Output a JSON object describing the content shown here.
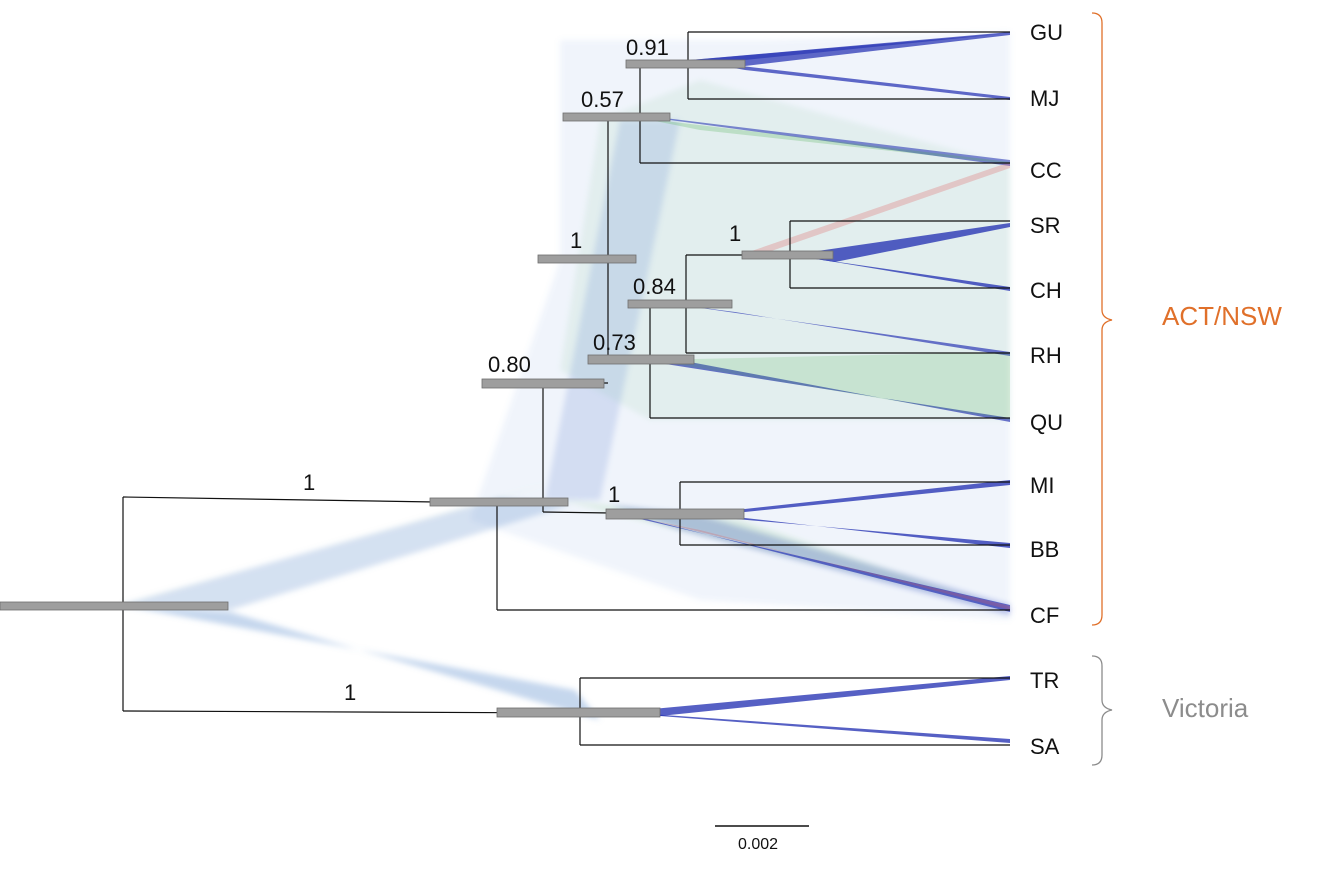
{
  "tree": {
    "taxa": [
      "GU",
      "MJ",
      "CC",
      "SR",
      "CH",
      "RH",
      "QU",
      "MI",
      "BB",
      "CF",
      "TR",
      "SA"
    ],
    "support_values": {
      "gu_mj": "0.91",
      "gu_cc": "0.57",
      "sr_ch": "1",
      "rh_clade": "0.84",
      "qu_clade": "0.73",
      "upper_clade": "1",
      "act_core": "0.80",
      "mi_bb": "1",
      "act_nsw": "1",
      "victoria": "1"
    },
    "groups": [
      {
        "label": "ACT/NSW",
        "color": "#E0702A"
      },
      {
        "label": "Victoria",
        "color": "#8C8C8C"
      }
    ],
    "scale_bar": {
      "label": "0.002"
    },
    "colors": {
      "branch": "#111111",
      "node_bar": "#9E9E9E",
      "cloud_blue": "#2233BB",
      "cloud_green": "#4CAF50",
      "cloud_red": "#E05050"
    }
  }
}
